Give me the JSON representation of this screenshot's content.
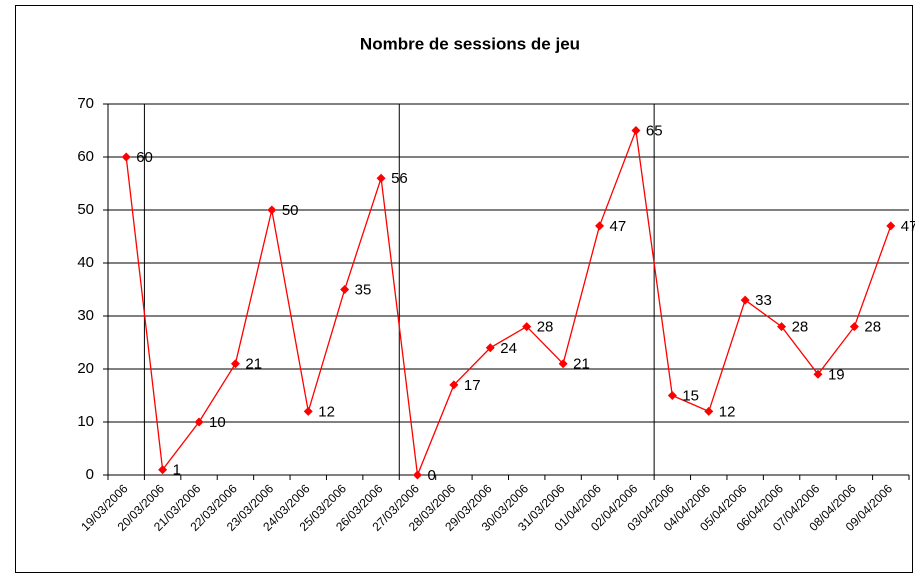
{
  "chart_data": {
    "type": "line",
    "title": "Nombre de sessions de jeu",
    "categories": [
      "19/03/2006",
      "20/03/2006",
      "21/03/2006",
      "22/03/2006",
      "23/03/2006",
      "24/03/2006",
      "25/03/2006",
      "26/03/2006",
      "27/03/2006",
      "28/03/2006",
      "29/03/2006",
      "30/03/2006",
      "31/03/2006",
      "01/04/2006",
      "02/04/2006",
      "03/04/2006",
      "04/04/2006",
      "05/04/2006",
      "06/04/2006",
      "07/04/2006",
      "08/04/2006",
      "09/04/2006"
    ],
    "values": [
      60,
      1,
      10,
      21,
      50,
      12,
      35,
      56,
      0,
      17,
      24,
      28,
      21,
      47,
      65,
      15,
      12,
      33,
      28,
      19,
      28,
      47
    ],
    "color": "#ff0000",
    "ylim": [
      0,
      70
    ],
    "yticks": [
      0,
      10,
      20,
      30,
      40,
      50,
      60,
      70
    ],
    "grid": true
  }
}
